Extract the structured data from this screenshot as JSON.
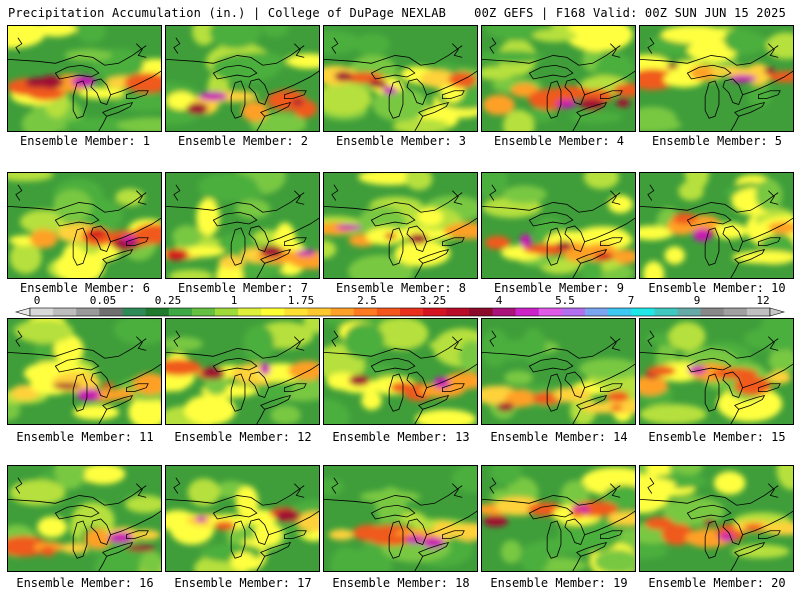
{
  "header": {
    "left_title": "Precipitation Accumulation (in.) | College of DuPage NEXLAB",
    "right_title": "00Z GEFS | F168 Valid: 00Z SUN JUN 15 2025"
  },
  "panels": [
    {
      "label": "Ensemble Member: 1"
    },
    {
      "label": "Ensemble Member: 2"
    },
    {
      "label": "Ensemble Member: 3"
    },
    {
      "label": "Ensemble Member: 4"
    },
    {
      "label": "Ensemble Member: 5"
    },
    {
      "label": "Ensemble Member: 6"
    },
    {
      "label": "Ensemble Member: 7"
    },
    {
      "label": "Ensemble Member: 8"
    },
    {
      "label": "Ensemble Member: 9"
    },
    {
      "label": "Ensemble Member: 10"
    },
    {
      "label": "Ensemble Member: 11"
    },
    {
      "label": "Ensemble Member: 12"
    },
    {
      "label": "Ensemble Member: 13"
    },
    {
      "label": "Ensemble Member: 14"
    },
    {
      "label": "Ensemble Member: 15"
    },
    {
      "label": "Ensemble Member: 16"
    },
    {
      "label": "Ensemble Member: 17"
    },
    {
      "label": "Ensemble Member: 18"
    },
    {
      "label": "Ensemble Member: 19"
    },
    {
      "label": "Ensemble Member: 20"
    }
  ],
  "legend": {
    "tick_labels": [
      "0",
      "0.05",
      "0.25",
      "1",
      "1.75",
      "2.5",
      "3.25",
      "4",
      "5.5",
      "7",
      "9",
      "12"
    ],
    "colors": [
      "#d9d9d9",
      "#bdbdbd",
      "#9a9a9a",
      "#6f6f6f",
      "#2e8b57",
      "#1f7a2e",
      "#3ea845",
      "#64c142",
      "#a0d93a",
      "#dff03a",
      "#ffff33",
      "#ffe033",
      "#ffc82e",
      "#ffa028",
      "#ff7a20",
      "#f5561c",
      "#e8301c",
      "#d41420",
      "#b80c28",
      "#8c0a2c",
      "#a8127a",
      "#cc22c8",
      "#e05ae8",
      "#b46ef0",
      "#7aa6f0",
      "#3cc8f0",
      "#20e8e8",
      "#40c8c0",
      "#66aaa8",
      "#888888",
      "#a0a0a0",
      "#c0c0c0"
    ]
  }
}
